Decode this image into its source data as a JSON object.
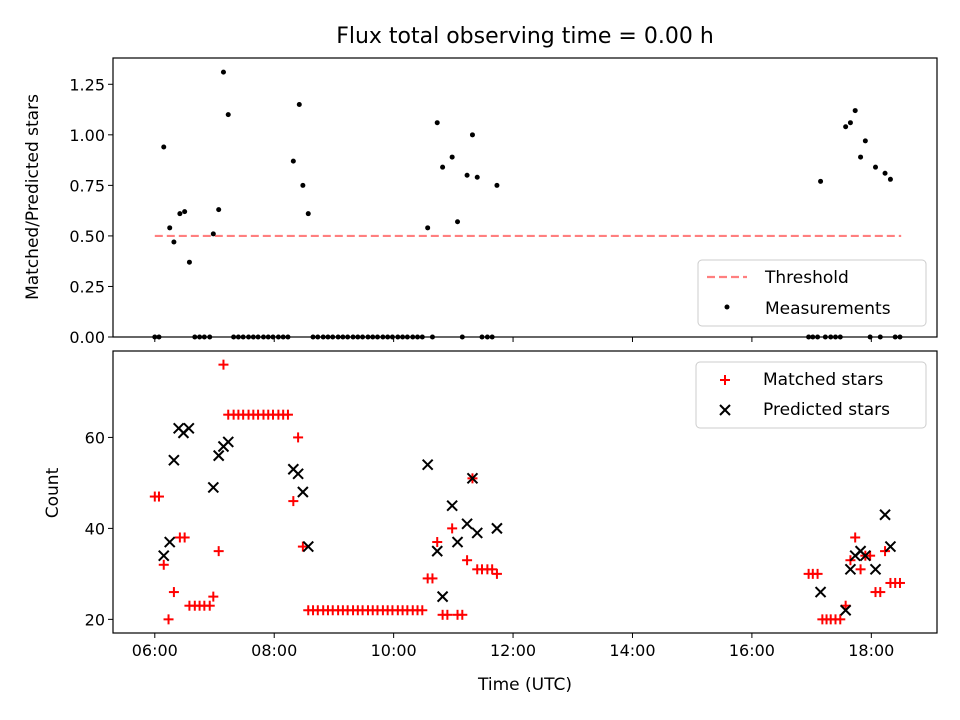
{
  "chart_data": [
    {
      "type": "scatter",
      "title": "Flux total observing time = 0.00 h",
      "xlabel": "",
      "ylabel": "Matched/Predicted stars",
      "xlim": [
        5.3,
        19.1
      ],
      "ylim": [
        0,
        1.38
      ],
      "yticks": [
        0.0,
        0.25,
        0.5,
        0.75,
        1.0,
        1.25
      ],
      "ytick_labels": [
        "0.00",
        "0.25",
        "0.50",
        "0.75",
        "1.00",
        "1.25"
      ],
      "xticks": [
        6,
        8,
        10,
        12,
        14,
        16,
        18
      ],
      "legend_position": "lower-right",
      "series": [
        {
          "name": "Threshold",
          "kind": "dashed-line",
          "color": "#ff7f7f",
          "x": [
            6.0,
            18.5
          ],
          "y": [
            0.5,
            0.5
          ]
        },
        {
          "name": "Measurements",
          "kind": "dot",
          "color": "#000000",
          "points": [
            [
              6.0,
              0
            ],
            [
              6.07,
              0
            ],
            [
              6.15,
              0.94
            ],
            [
              6.25,
              0.54
            ],
            [
              6.32,
              0.47
            ],
            [
              6.42,
              0.61
            ],
            [
              6.5,
              0.62
            ],
            [
              6.58,
              0.37
            ],
            [
              6.67,
              0
            ],
            [
              6.75,
              0
            ],
            [
              6.83,
              0
            ],
            [
              6.92,
              0
            ],
            [
              6.98,
              0.51
            ],
            [
              7.07,
              0.63
            ],
            [
              7.15,
              1.31
            ],
            [
              7.23,
              1.1
            ],
            [
              7.32,
              0
            ],
            [
              7.4,
              0
            ],
            [
              7.48,
              0
            ],
            [
              7.57,
              0
            ],
            [
              7.65,
              0
            ],
            [
              7.73,
              0
            ],
            [
              7.82,
              0
            ],
            [
              7.9,
              0
            ],
            [
              7.98,
              0
            ],
            [
              8.07,
              0
            ],
            [
              8.15,
              0
            ],
            [
              8.23,
              0
            ],
            [
              8.32,
              0.87
            ],
            [
              8.42,
              1.15
            ],
            [
              8.48,
              0.75
            ],
            [
              8.57,
              0.61
            ],
            [
              8.65,
              0
            ],
            [
              8.73,
              0
            ],
            [
              8.82,
              0
            ],
            [
              8.9,
              0
            ],
            [
              8.98,
              0
            ],
            [
              9.07,
              0
            ],
            [
              9.15,
              0
            ],
            [
              9.23,
              0
            ],
            [
              9.32,
              0
            ],
            [
              9.4,
              0
            ],
            [
              9.48,
              0
            ],
            [
              9.57,
              0
            ],
            [
              9.65,
              0
            ],
            [
              9.73,
              0
            ],
            [
              9.82,
              0
            ],
            [
              9.9,
              0
            ],
            [
              9.98,
              0
            ],
            [
              10.07,
              0
            ],
            [
              10.15,
              0
            ],
            [
              10.23,
              0
            ],
            [
              10.32,
              0
            ],
            [
              10.4,
              0
            ],
            [
              10.48,
              0
            ],
            [
              10.57,
              0.54
            ],
            [
              10.65,
              0
            ],
            [
              10.73,
              1.06
            ],
            [
              10.82,
              0.84
            ],
            [
              10.98,
              0.89
            ],
            [
              11.07,
              0.57
            ],
            [
              11.15,
              0
            ],
            [
              11.23,
              0.8
            ],
            [
              11.32,
              1.0
            ],
            [
              11.4,
              0.79
            ],
            [
              11.48,
              0
            ],
            [
              11.57,
              0
            ],
            [
              11.65,
              0
            ],
            [
              11.73,
              0.75
            ],
            [
              16.95,
              0
            ],
            [
              17.02,
              0
            ],
            [
              17.1,
              0
            ],
            [
              17.15,
              0.77
            ],
            [
              17.23,
              0
            ],
            [
              17.32,
              0
            ],
            [
              17.4,
              0
            ],
            [
              17.48,
              0
            ],
            [
              17.57,
              1.04
            ],
            [
              17.65,
              1.06
            ],
            [
              17.73,
              1.12
            ],
            [
              17.82,
              0.89
            ],
            [
              17.9,
              0.97
            ],
            [
              17.98,
              0
            ],
            [
              18.07,
              0.84
            ],
            [
              18.15,
              0
            ],
            [
              18.23,
              0.81
            ],
            [
              18.32,
              0.78
            ],
            [
              18.4,
              0
            ],
            [
              18.48,
              0
            ]
          ]
        }
      ]
    },
    {
      "type": "scatter",
      "title": "",
      "xlabel": "Time (UTC)",
      "ylabel": "Count",
      "xlim": [
        5.3,
        19.1
      ],
      "ylim": [
        17,
        79
      ],
      "yticks": [
        20,
        40,
        60
      ],
      "ytick_labels": [
        "20",
        "40",
        "60"
      ],
      "xticks": [
        6,
        8,
        10,
        12,
        14,
        16,
        18
      ],
      "xtick_labels": [
        "06:00",
        "08:00",
        "10:00",
        "12:00",
        "14:00",
        "16:00",
        "18:00"
      ],
      "legend_position": "top-right",
      "series": [
        {
          "name": "Matched stars",
          "kind": "plus",
          "color": "#ff0000",
          "points": [
            [
              6.0,
              47
            ],
            [
              6.07,
              47
            ],
            [
              6.15,
              32
            ],
            [
              6.23,
              20
            ],
            [
              6.32,
              26
            ],
            [
              6.42,
              38
            ],
            [
              6.5,
              38
            ],
            [
              6.58,
              23
            ],
            [
              6.67,
              23
            ],
            [
              6.75,
              23
            ],
            [
              6.83,
              23
            ],
            [
              6.92,
              23
            ],
            [
              6.98,
              25
            ],
            [
              7.07,
              35
            ],
            [
              7.15,
              76
            ],
            [
              7.23,
              65
            ],
            [
              7.32,
              65
            ],
            [
              7.4,
              65
            ],
            [
              7.48,
              65
            ],
            [
              7.57,
              65
            ],
            [
              7.65,
              65
            ],
            [
              7.73,
              65
            ],
            [
              7.82,
              65
            ],
            [
              7.9,
              65
            ],
            [
              7.98,
              65
            ],
            [
              8.07,
              65
            ],
            [
              8.15,
              65
            ],
            [
              8.23,
              65
            ],
            [
              8.32,
              46
            ],
            [
              8.4,
              60
            ],
            [
              8.48,
              36
            ],
            [
              8.57,
              22
            ],
            [
              8.65,
              22
            ],
            [
              8.73,
              22
            ],
            [
              8.82,
              22
            ],
            [
              8.9,
              22
            ],
            [
              8.98,
              22
            ],
            [
              9.07,
              22
            ],
            [
              9.15,
              22
            ],
            [
              9.23,
              22
            ],
            [
              9.32,
              22
            ],
            [
              9.4,
              22
            ],
            [
              9.48,
              22
            ],
            [
              9.57,
              22
            ],
            [
              9.65,
              22
            ],
            [
              9.73,
              22
            ],
            [
              9.82,
              22
            ],
            [
              9.9,
              22
            ],
            [
              9.98,
              22
            ],
            [
              10.07,
              22
            ],
            [
              10.15,
              22
            ],
            [
              10.23,
              22
            ],
            [
              10.32,
              22
            ],
            [
              10.4,
              22
            ],
            [
              10.48,
              22
            ],
            [
              10.57,
              29
            ],
            [
              10.65,
              29
            ],
            [
              10.73,
              37
            ],
            [
              10.82,
              21
            ],
            [
              10.9,
              21
            ],
            [
              10.98,
              40
            ],
            [
              11.07,
              21
            ],
            [
              11.15,
              21
            ],
            [
              11.23,
              33
            ],
            [
              11.32,
              51
            ],
            [
              11.4,
              31
            ],
            [
              11.48,
              31
            ],
            [
              11.57,
              31
            ],
            [
              11.65,
              31
            ],
            [
              11.73,
              30
            ],
            [
              16.95,
              30
            ],
            [
              17.02,
              30
            ],
            [
              17.1,
              30
            ],
            [
              17.18,
              20
            ],
            [
              17.25,
              20
            ],
            [
              17.32,
              20
            ],
            [
              17.4,
              20
            ],
            [
              17.48,
              20
            ],
            [
              17.57,
              23
            ],
            [
              17.65,
              33
            ],
            [
              17.73,
              38
            ],
            [
              17.82,
              31
            ],
            [
              17.9,
              34
            ],
            [
              17.98,
              34
            ],
            [
              18.07,
              26
            ],
            [
              18.15,
              26
            ],
            [
              18.23,
              35
            ],
            [
              18.32,
              28
            ],
            [
              18.4,
              28
            ],
            [
              18.48,
              28
            ]
          ]
        },
        {
          "name": "Predicted stars",
          "kind": "x",
          "color": "#000000",
          "points": [
            [
              6.15,
              34
            ],
            [
              6.25,
              37
            ],
            [
              6.32,
              55
            ],
            [
              6.4,
              62
            ],
            [
              6.48,
              61
            ],
            [
              6.57,
              62
            ],
            [
              6.98,
              49
            ],
            [
              7.07,
              56
            ],
            [
              7.15,
              58
            ],
            [
              7.23,
              59
            ],
            [
              8.32,
              53
            ],
            [
              8.4,
              52
            ],
            [
              8.48,
              48
            ],
            [
              8.57,
              36
            ],
            [
              10.57,
              54
            ],
            [
              10.73,
              35
            ],
            [
              10.82,
              25
            ],
            [
              10.98,
              45
            ],
            [
              11.07,
              37
            ],
            [
              11.23,
              41
            ],
            [
              11.32,
              51
            ],
            [
              11.4,
              39
            ],
            [
              11.73,
              40
            ],
            [
              17.15,
              26
            ],
            [
              17.57,
              22
            ],
            [
              17.65,
              31
            ],
            [
              17.73,
              34
            ],
            [
              17.82,
              35
            ],
            [
              17.9,
              34
            ],
            [
              18.07,
              31
            ],
            [
              18.23,
              43
            ],
            [
              18.32,
              36
            ]
          ]
        }
      ]
    }
  ]
}
